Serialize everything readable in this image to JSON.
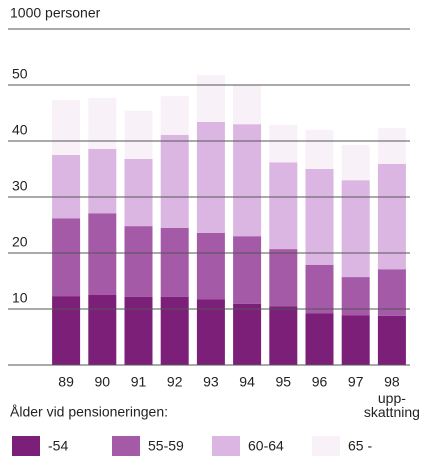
{
  "chart_data": {
    "type": "stacked_bar",
    "y_axis_label": "1000 personer",
    "categories": [
      "89",
      "90",
      "91",
      "92",
      "93",
      "94",
      "95",
      "96",
      "97",
      "98"
    ],
    "category_note": "upp-\nskattning",
    "legend_title": "Ålder vid pensioneringen:",
    "series": [
      {
        "name": "-54",
        "color": "#7b1f79",
        "values": [
          12.3,
          12.5,
          12.2,
          12.2,
          11.7,
          10.9,
          10.5,
          9.2,
          8.9,
          8.8
        ]
      },
      {
        "name": "55-59",
        "color": "#a45aa7",
        "values": [
          13.9,
          14.6,
          12.6,
          12.3,
          11.9,
          12.1,
          10.2,
          8.7,
          6.8,
          8.3
        ]
      },
      {
        "name": "60-64",
        "color": "#dbb6e2",
        "values": [
          11.3,
          11.5,
          12.0,
          16.6,
          19.8,
          20.0,
          15.5,
          17.1,
          17.3,
          18.8
        ]
      },
      {
        "name": "65 -",
        "color": "#f8f1f8",
        "values": [
          9.8,
          9.1,
          8.6,
          6.9,
          8.4,
          7.0,
          6.7,
          7.0,
          6.3,
          6.4
        ]
      }
    ],
    "ylim": [
      0,
      60
    ],
    "yticks": [
      10,
      20,
      30,
      40,
      50
    ],
    "grid": true
  }
}
